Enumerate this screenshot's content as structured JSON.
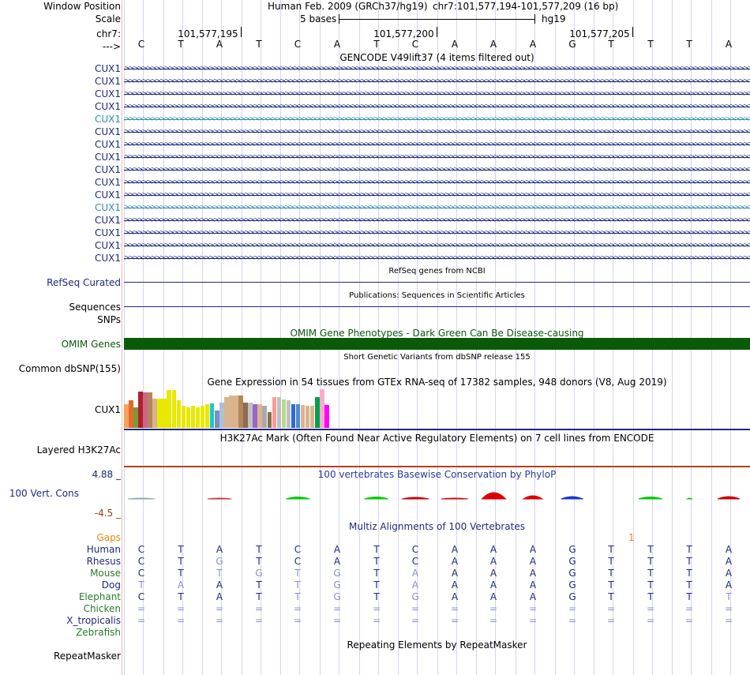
{
  "header": {
    "window_position_label": "Window Position",
    "assembly_text": "Human Feb. 2009 (GRCh37/hg19)",
    "position_text": "chr7:101,577,194-101,577,209 (16 bp)",
    "scale_label": "Scale",
    "scale_bar_text": "5 bases",
    "scale_db": "hg19",
    "chrom_label": "chr7:",
    "coord_ticks": [
      "101,577,195",
      "101,577,200",
      "101,577,205"
    ],
    "strand_label": "--->",
    "bases": [
      "C",
      "T",
      "A",
      "T",
      "C",
      "A",
      "T",
      "C",
      "A",
      "A",
      "A",
      "G",
      "T",
      "T",
      "T",
      "A"
    ]
  },
  "gencode": {
    "title": "GENCODE V49lift37 (4 items filtered out)",
    "genes": [
      {
        "name": "CUX1",
        "color": "#1f2a7a"
      },
      {
        "name": "CUX1",
        "color": "#1f2a7a"
      },
      {
        "name": "CUX1",
        "color": "#1f2a7a"
      },
      {
        "name": "CUX1",
        "color": "#1f2a7a"
      },
      {
        "name": "CUX1",
        "color": "#2f8fb0"
      },
      {
        "name": "CUX1",
        "color": "#1f2a7a"
      },
      {
        "name": "CUX1",
        "color": "#1f2a7a"
      },
      {
        "name": "CUX1",
        "color": "#1f2a7a"
      },
      {
        "name": "CUX1",
        "color": "#1f2a7a"
      },
      {
        "name": "CUX1",
        "color": "#1f2a7a"
      },
      {
        "name": "CUX1",
        "color": "#1f2a7a"
      },
      {
        "name": "CUX1",
        "color": "#2f8fb0"
      },
      {
        "name": "CUX1",
        "color": "#1f2a7a"
      },
      {
        "name": "CUX1",
        "color": "#1f2a7a"
      },
      {
        "name": "CUX1",
        "color": "#1f2a7a"
      },
      {
        "name": "CUX1",
        "color": "#1f2a7a"
      }
    ]
  },
  "refseq": {
    "title": "RefSeq genes from NCBI",
    "label": "RefSeq Curated"
  },
  "publications": {
    "title": "Publications: Sequences in Scientific Articles",
    "label": "Sequences"
  },
  "snps": {
    "label": "SNPs"
  },
  "omim": {
    "title": "OMIM Gene Phenotypes - Dark Green Can Be Disease-causing",
    "label": "OMIM Genes",
    "color": "#0a5a0a"
  },
  "dbsnp": {
    "title": "Short Genetic Variants from dbSNP release 155",
    "label": "Common dbSNP(155)"
  },
  "gtex": {
    "title": "Gene Expression in 54 tissues from GTEx RNA-seq of 17382 samples, 948 donors (V8, Aug 2019)",
    "label": "CUX1",
    "tissue_colors": [
      "#f7a35c",
      "#e36b2b",
      "#7a9a3a",
      "#b0202a",
      "#cc6688",
      "#b5855a",
      "#d9b48f",
      "#e8e800",
      "#e8e800",
      "#e8e800",
      "#e8e800",
      "#e8e800",
      "#e8e800",
      "#e8e800",
      "#e8e800",
      "#e8e800",
      "#e8e800",
      "#e8e800",
      "#1fc5c5",
      "#7890c0",
      "#b0c0d0",
      "#d9b48f",
      "#d9b48f",
      "#d9b48f",
      "#b5855a",
      "#8b6e4e",
      "#c0c0c0",
      "#9966cc",
      "#d9b48f",
      "#aaaaaa",
      "#8b6e4e",
      "#ff9999",
      "#c0c0c0",
      "#b5d98f",
      "#c0c0c0",
      "#3366dd",
      "#4a8ad0",
      "#d9b48f",
      "#d9b48f",
      "#d9b48f",
      "#00a050",
      "#ffaacc",
      "#ff00ff"
    ],
    "tissue_values": [
      0.62,
      0.72,
      0.55,
      0.95,
      0.94,
      0.93,
      0.78,
      0.78,
      0.78,
      1.0,
      1.0,
      0.72,
      0.58,
      0.55,
      0.58,
      0.55,
      0.58,
      0.62,
      0.65,
      0.46,
      0.66,
      0.82,
      0.86,
      0.86,
      0.86,
      0.66,
      0.66,
      0.62,
      0.62,
      0.58,
      0.42,
      0.82,
      0.82,
      0.76,
      0.72,
      0.62,
      0.62,
      0.6,
      0.58,
      0.58,
      0.82,
      1.03,
      0.6
    ]
  },
  "h3k27ac": {
    "title": "H3K27Ac Mark (Often Found Near Active Regulatory Elements) on 7 cell lines from ENCODE",
    "label": "Layered H3K27Ac"
  },
  "phylop": {
    "title": "100 vertebrates Basewise Conservation by PhyloP",
    "label": "100 Vert. Cons",
    "max_label": "4.88 _",
    "min_label": "-4.5 _"
  },
  "multiz": {
    "title": "Multiz Alignments of 100 Vertebrates",
    "gaps_label": "Gaps",
    "gap_value": "1",
    "species": [
      {
        "name": "Human",
        "color": "#1f2a7a",
        "seq": [
          "C",
          "T",
          "A",
          "T",
          "C",
          "A",
          "T",
          "C",
          "A",
          "A",
          "A",
          "G",
          "T",
          "T",
          "T",
          "A"
        ],
        "dim": []
      },
      {
        "name": "Rhesus",
        "color": "#1f2a7a",
        "seq": [
          "C",
          "T",
          "G",
          "T",
          "C",
          "A",
          "T",
          "C",
          "A",
          "A",
          "A",
          "G",
          "T",
          "T",
          "T",
          "A"
        ],
        "dim": [
          2
        ]
      },
      {
        "name": "Mouse",
        "color": "#2a7a2a",
        "seq": [
          "C",
          "T",
          "T",
          "G",
          "T",
          "G",
          "T",
          "A",
          "A",
          "A",
          "A",
          "G",
          "T",
          "T",
          "T",
          "A"
        ],
        "dim": [
          2,
          3,
          4,
          5,
          7
        ]
      },
      {
        "name": "Dog",
        "color": "#1f2a7a",
        "seq": [
          "T",
          "A",
          "A",
          "T",
          "T",
          "G",
          "T",
          "A",
          "A",
          "A",
          "A",
          "G",
          "T",
          "T",
          "T",
          "A"
        ],
        "dim": [
          0,
          1,
          4,
          5,
          7
        ]
      },
      {
        "name": "Elephant",
        "color": "#2a7a2a",
        "seq": [
          "C",
          "T",
          "A",
          "T",
          "T",
          "G",
          "T",
          "G",
          "A",
          "A",
          "A",
          "G",
          "T",
          "T",
          "T",
          "T"
        ],
        "dim": [
          4,
          5,
          7,
          15
        ]
      },
      {
        "name": "Chicken",
        "color": "#2a7a2a",
        "seq": [
          "=",
          "=",
          "=",
          "=",
          "=",
          "=",
          "=",
          "=",
          "=",
          "=",
          "=",
          "=",
          "=",
          "=",
          "=",
          "="
        ],
        "dim": []
      },
      {
        "name": "X_tropicalis",
        "color": "#1f2a7a",
        "seq": [
          "=",
          "=",
          "=",
          "=",
          "=",
          "=",
          "=",
          "=",
          "=",
          "=",
          "=",
          "=",
          "=",
          "=",
          "=",
          "="
        ],
        "dim": []
      },
      {
        "name": "Zebrafish",
        "color": "#2a7a2a",
        "seq": [],
        "dim": []
      }
    ]
  },
  "repeatmasker": {
    "title": "Repeating Elements by RepeatMasker",
    "label": "RepeatMasker"
  }
}
